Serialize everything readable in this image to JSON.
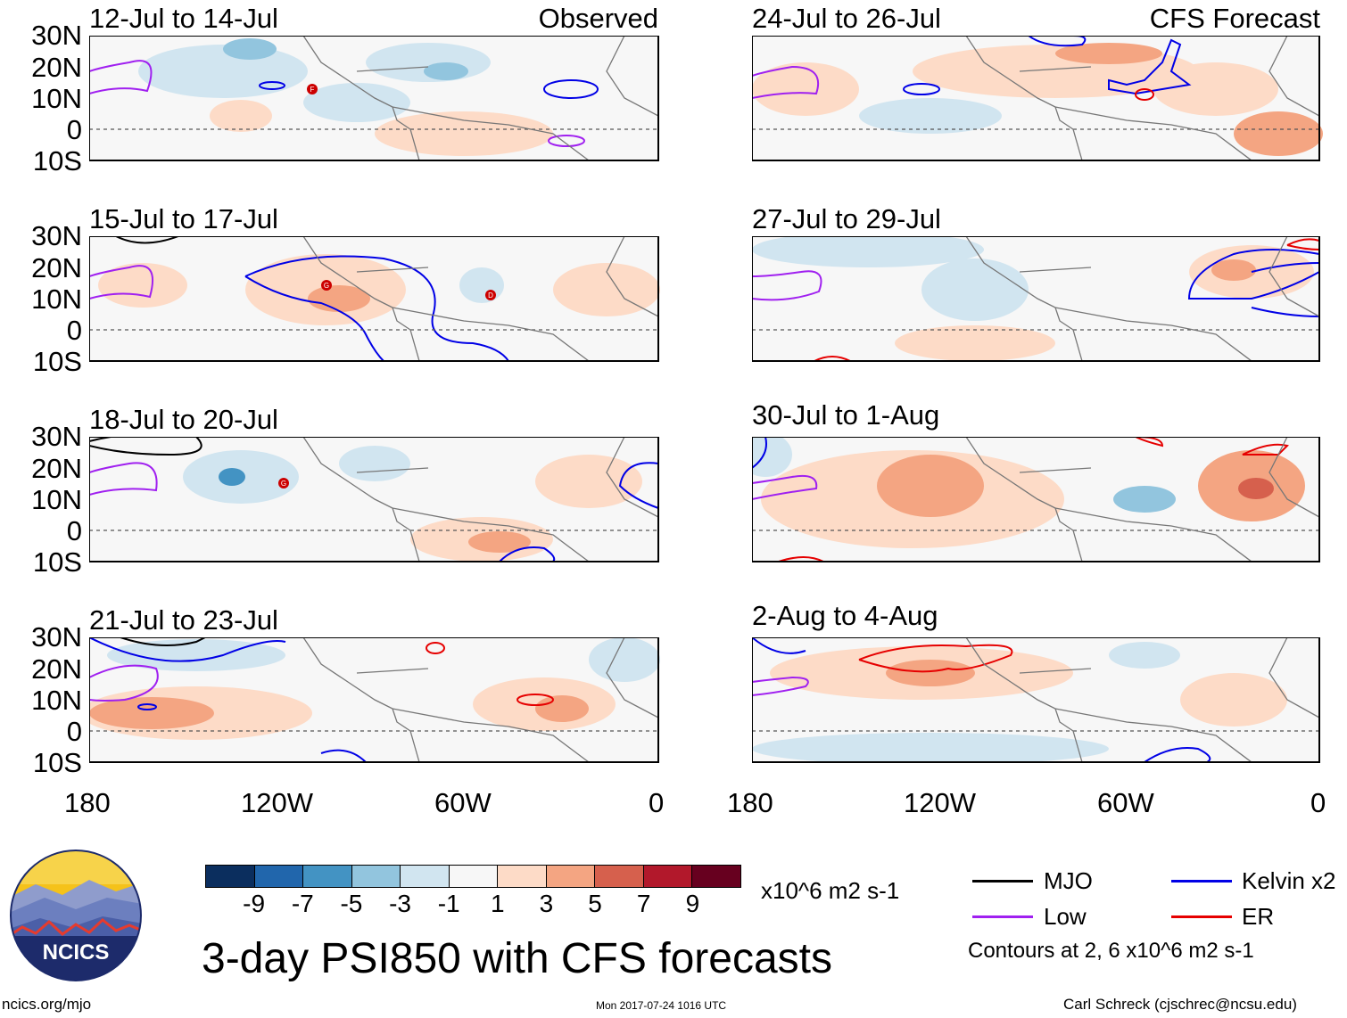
{
  "title": "3-day PSI850 with CFS forecasts",
  "labels": {
    "observed": "Observed",
    "forecast": "CFS Forecast"
  },
  "lat_ticks": [
    "30N",
    "20N",
    "10N",
    "0",
    "10S"
  ],
  "lon_ticks": [
    "180",
    "120W",
    "60W",
    "0"
  ],
  "panels": [
    {
      "title": "12-Jul to 14-Jul",
      "column": "observed",
      "storms": [
        "F"
      ]
    },
    {
      "title": "15-Jul to 17-Jul",
      "column": "observed",
      "storms": [
        "G",
        "D"
      ]
    },
    {
      "title": "18-Jul to 20-Jul",
      "column": "observed",
      "storms": [
        "G"
      ]
    },
    {
      "title": "21-Jul to 23-Jul",
      "column": "observed",
      "storms": []
    },
    {
      "title": "24-Jul to 26-Jul",
      "column": "forecast",
      "storms": []
    },
    {
      "title": "27-Jul to 29-Jul",
      "column": "forecast",
      "storms": []
    },
    {
      "title": "30-Jul to 1-Aug",
      "column": "forecast",
      "storms": []
    },
    {
      "title": "2-Aug to 4-Aug",
      "column": "forecast",
      "storms": []
    }
  ],
  "colorbar": {
    "colors": [
      "#0b2e5e",
      "#2166ac",
      "#4393c3",
      "#92c5de",
      "#d1e5f0",
      "#f7f7f7",
      "#fddbc7",
      "#f4a582",
      "#d6604d",
      "#b2182b",
      "#67001f"
    ],
    "labels": [
      "-9",
      "-7",
      "-5",
      "-3",
      "-1",
      "1",
      "3",
      "5",
      "7",
      "9"
    ],
    "units": "x10^6 m2 s-1"
  },
  "legend": {
    "mjo": {
      "label": "MJO",
      "color": "#000000"
    },
    "kelvin": {
      "label": "Kelvin x2",
      "color": "#0000e6"
    },
    "low": {
      "label": "Low",
      "color": "#a020f0"
    },
    "er": {
      "label": "ER",
      "color": "#e60000"
    },
    "note": "Contours at 2, 6 x10^6 m2 s-1"
  },
  "logo": {
    "text": "NCICS"
  },
  "footer": {
    "url": "ncics.org/mjo",
    "timestamp": "Mon 2017-07-24 1016 UTC",
    "author": "Carl Schreck (cjschrec@ncsu.edu)"
  }
}
